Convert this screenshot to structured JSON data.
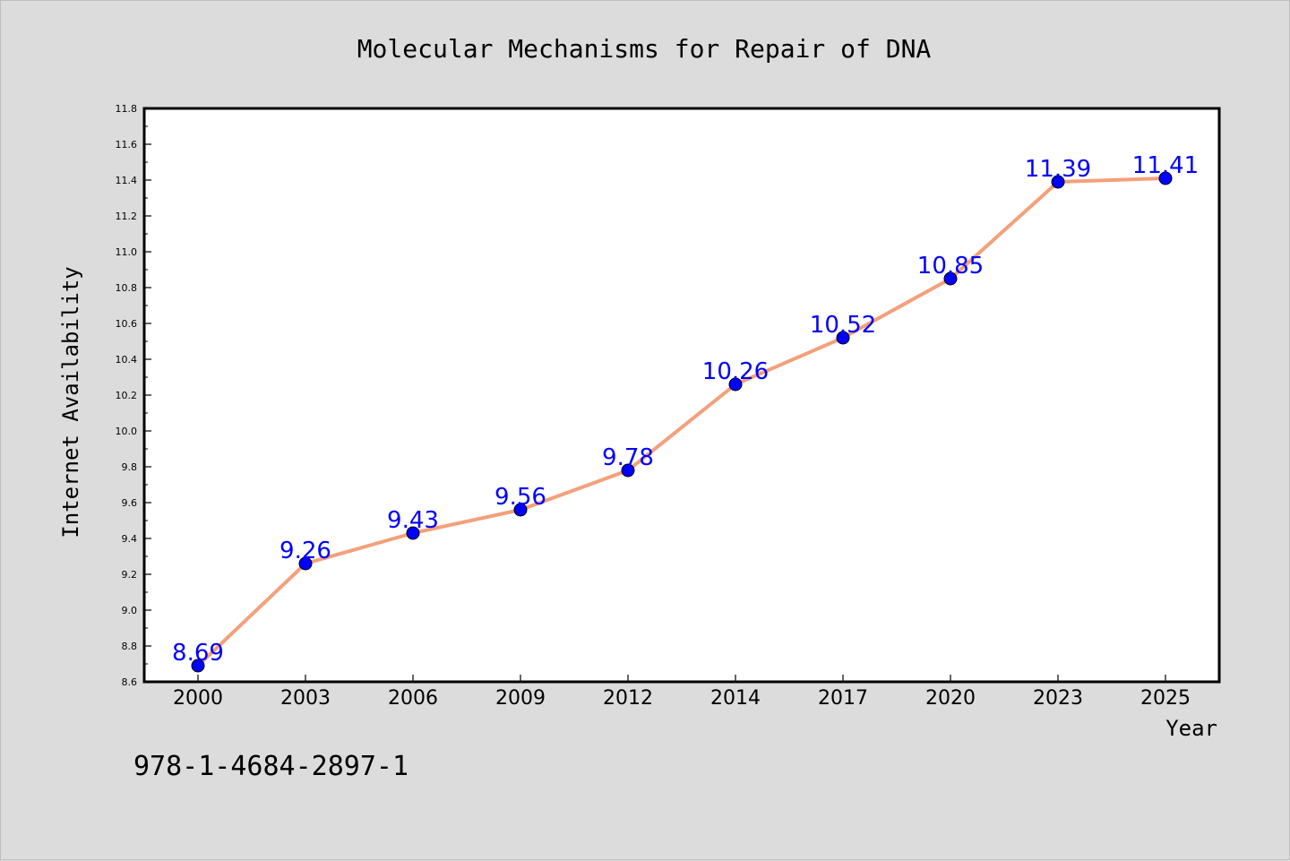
{
  "figure": {
    "isbn_text": "978-1-4684-2897-1",
    "background_color": "#dcdcdc",
    "plot_background_color": "#ffffff"
  },
  "chart_data": {
    "type": "line",
    "title": "Molecular Mechanisms for Repair of DNA",
    "xlabel": "Year",
    "ylabel": "Internet Availability",
    "categories": [
      "2000",
      "2003",
      "2006",
      "2009",
      "2012",
      "2014",
      "2017",
      "2020",
      "2023",
      "2025"
    ],
    "series": [
      {
        "values": [
          8.69,
          9.26,
          9.43,
          9.56,
          9.78,
          10.26,
          10.52,
          10.85,
          11.39,
          11.41
        ],
        "labels": [
          "8.69",
          "9.26",
          "9.43",
          "9.56",
          "9.78",
          "10.26",
          "10.52",
          "10.85",
          "11.39",
          "11.41"
        ],
        "line_color": "#f4a07a",
        "marker_color": "#0000ff",
        "label_color": "#0000ff"
      }
    ],
    "ylim": [
      8.6,
      11.8
    ],
    "yticks": [
      "8.6",
      "8.8",
      "9.0",
      "9.2",
      "9.4",
      "9.6",
      "9.8",
      "10.0",
      "10.2",
      "10.4",
      "10.6",
      "10.8",
      "11.0",
      "11.2",
      "11.4",
      "11.6",
      "11.8"
    ],
    "grid": false,
    "legend": "none"
  }
}
